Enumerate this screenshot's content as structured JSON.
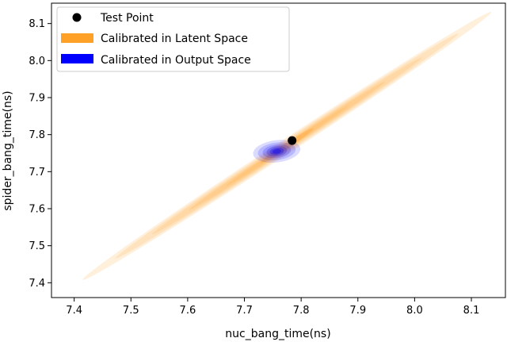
{
  "chart_data": {
    "type": "scatter",
    "title": "",
    "xlabel": "nuc_bang_time(ns)",
    "ylabel": "spider_bang_time(ns)",
    "xlim": [
      7.36,
      8.16
    ],
    "ylim": [
      7.36,
      8.155
    ],
    "xticks": [
      "7.4",
      "7.5",
      "7.6",
      "7.7",
      "7.8",
      "7.9",
      "8.0",
      "8.1"
    ],
    "yticks": [
      "7.4",
      "7.5",
      "7.6",
      "7.7",
      "7.8",
      "7.9",
      "8.0",
      "8.1"
    ],
    "grid": false,
    "legend_position": "top-left",
    "series": [
      {
        "name": "Test Point",
        "kind": "point",
        "color": "#000000",
        "x": [
          7.784
        ],
        "y": [
          7.784
        ]
      },
      {
        "name": "Calibrated in Latent Space",
        "kind": "density-contour",
        "color": "#ffa126",
        "x_range": [
          7.415,
          8.135
        ],
        "y_range": [
          7.408,
          8.131
        ],
        "center": [
          7.775,
          7.77
        ]
      },
      {
        "name": "Calibrated in Output Space",
        "kind": "density-contour",
        "color": "#0000ff",
        "center": [
          7.757,
          7.755
        ],
        "x_range": [
          7.72,
          7.79
        ],
        "y_range": [
          7.74,
          7.77
        ]
      }
    ]
  }
}
